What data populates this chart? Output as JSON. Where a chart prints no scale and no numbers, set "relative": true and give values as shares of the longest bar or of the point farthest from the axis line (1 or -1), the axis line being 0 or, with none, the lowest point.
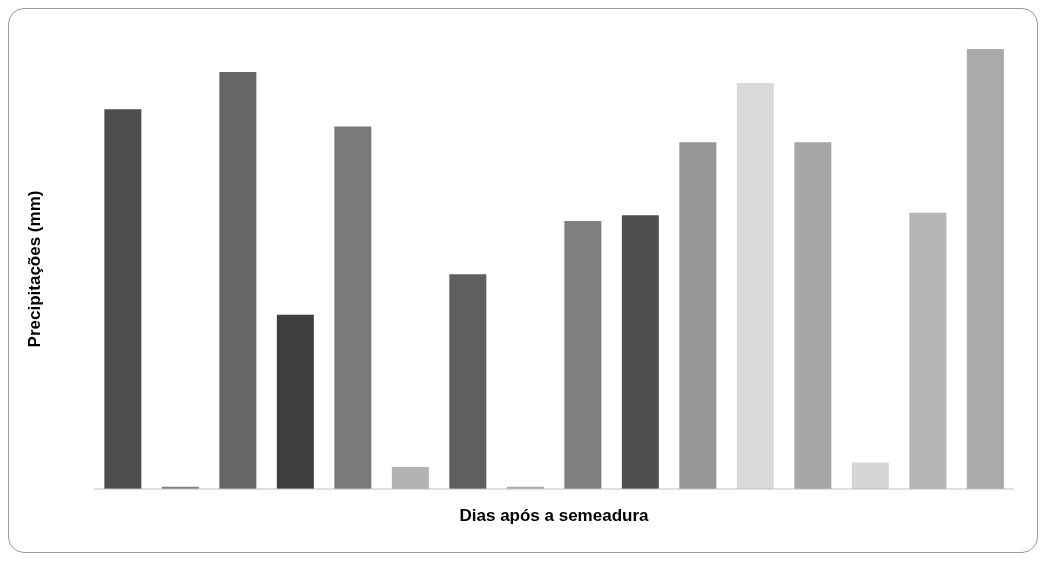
{
  "chart_data": {
    "type": "bar",
    "xlabel": "Dias após a semeadura",
    "ylabel": "Precipitações (mm)",
    "relative": true,
    "categories": [
      null,
      null,
      null,
      null,
      null,
      null,
      null,
      null,
      null,
      null,
      null,
      null,
      null,
      null,
      null,
      null
    ],
    "values": [
      0.863,
      0.005,
      0.948,
      0.396,
      0.824,
      0.05,
      0.488,
      0.005,
      0.609,
      0.622,
      0.788,
      0.923,
      0.788,
      0.06,
      0.628,
      1
    ],
    "colors": [
      "#4d4d4d",
      "#808080",
      "#666666",
      "#3f3f3f",
      "#7a7a7a",
      "#b3b3b3",
      "#5f5f5f",
      "#aaaaaa",
      "#7f7f7f",
      "#4f4f4f",
      "#969696",
      "#d9d9d9",
      "#a6a6a6",
      "#d6d6d6",
      "#b5b5b5",
      "#aaaaaa"
    ]
  }
}
